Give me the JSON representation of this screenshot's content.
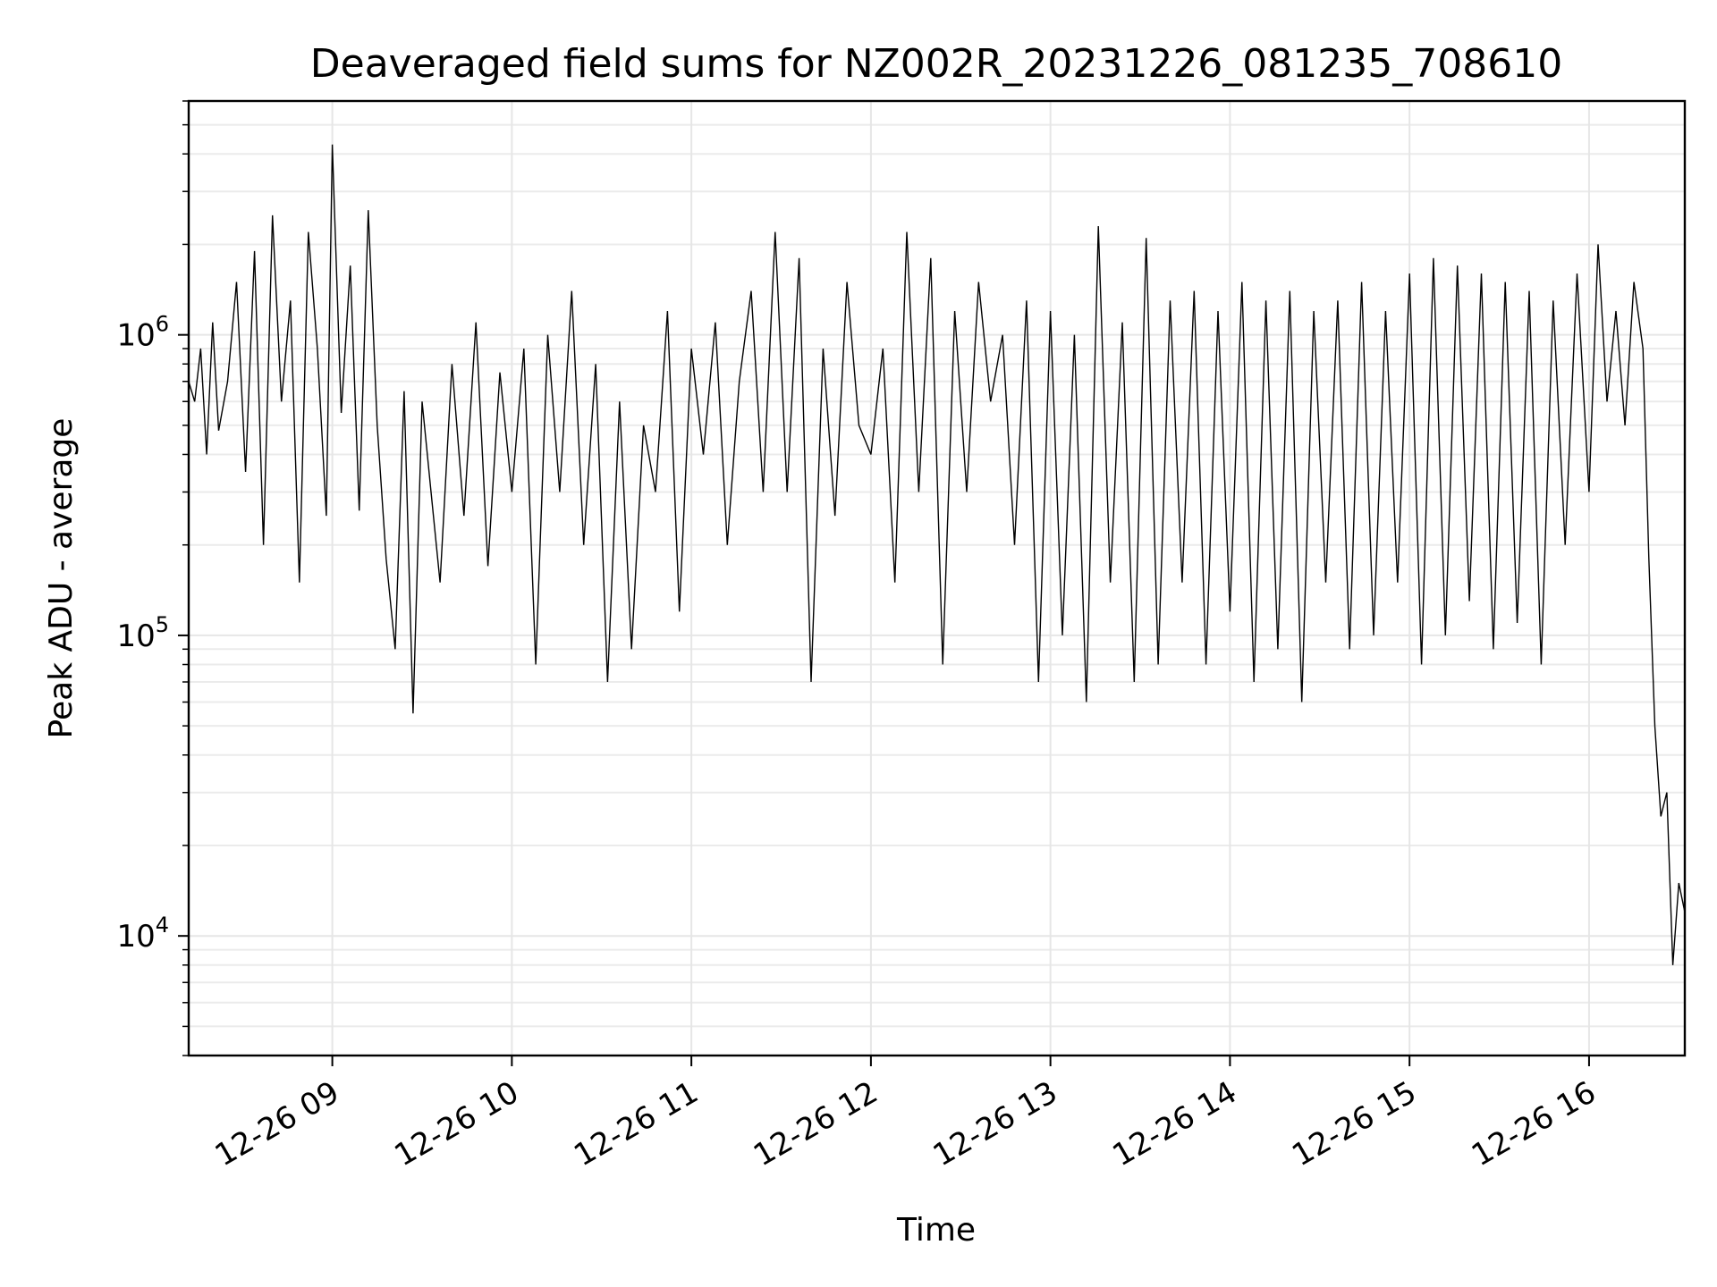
{
  "chart_data": {
    "type": "line",
    "title": "Deaveraged field sums for NZ002R_20231226_081235_708610",
    "xlabel": "Time",
    "ylabel": "Peak ADU - average",
    "yscale": "log",
    "grid": "on (major and minor)",
    "line_color": "#000000",
    "xlim": [
      "2023-12-26 08:12",
      "2023-12-26 16:32"
    ],
    "ylim": [
      4000,
      6000000
    ],
    "x_ticks": [
      {
        "value": "2023-12-26 09:00",
        "label": "12-26 09"
      },
      {
        "value": "2023-12-26 10:00",
        "label": "12-26 10"
      },
      {
        "value": "2023-12-26 11:00",
        "label": "12-26 11"
      },
      {
        "value": "2023-12-26 12:00",
        "label": "12-26 12"
      },
      {
        "value": "2023-12-26 13:00",
        "label": "12-26 13"
      },
      {
        "value": "2023-12-26 14:00",
        "label": "12-26 14"
      },
      {
        "value": "2023-12-26 15:00",
        "label": "12-26 15"
      },
      {
        "value": "2023-12-26 16:00",
        "label": "12-26 16"
      }
    ],
    "y_ticks": [
      {
        "value": 10000,
        "base": "10",
        "exp": "4"
      },
      {
        "value": 100000,
        "base": "10",
        "exp": "5"
      },
      {
        "value": 1000000,
        "base": "10",
        "exp": "6"
      }
    ],
    "series": [
      {
        "x": [
          "2023-12-26 08:12",
          "2023-12-26 08:14",
          "2023-12-26 08:16",
          "2023-12-26 08:18",
          "2023-12-26 08:20",
          "2023-12-26 08:22",
          "2023-12-26 08:25",
          "2023-12-26 08:28",
          "2023-12-26 08:31",
          "2023-12-26 08:34",
          "2023-12-26 08:37",
          "2023-12-26 08:40",
          "2023-12-26 08:43",
          "2023-12-26 08:46",
          "2023-12-26 08:49",
          "2023-12-26 08:52",
          "2023-12-26 08:55",
          "2023-12-26 08:58",
          "2023-12-26 09:00",
          "2023-12-26 09:03",
          "2023-12-26 09:06",
          "2023-12-26 09:09",
          "2023-12-26 09:12",
          "2023-12-26 09:15",
          "2023-12-26 09:18",
          "2023-12-26 09:21",
          "2023-12-26 09:24",
          "2023-12-26 09:27",
          "2023-12-26 09:30",
          "2023-12-26 09:33",
          "2023-12-26 09:36",
          "2023-12-26 09:40",
          "2023-12-26 09:44",
          "2023-12-26 09:48",
          "2023-12-26 09:52",
          "2023-12-26 09:56",
          "2023-12-26 10:00",
          "2023-12-26 10:04",
          "2023-12-26 10:08",
          "2023-12-26 10:12",
          "2023-12-26 10:16",
          "2023-12-26 10:20",
          "2023-12-26 10:24",
          "2023-12-26 10:28",
          "2023-12-26 10:32",
          "2023-12-26 10:36",
          "2023-12-26 10:40",
          "2023-12-26 10:44",
          "2023-12-26 10:48",
          "2023-12-26 10:52",
          "2023-12-26 10:56",
          "2023-12-26 11:00",
          "2023-12-26 11:04",
          "2023-12-26 11:08",
          "2023-12-26 11:12",
          "2023-12-26 11:16",
          "2023-12-26 11:20",
          "2023-12-26 11:24",
          "2023-12-26 11:28",
          "2023-12-26 11:32",
          "2023-12-26 11:36",
          "2023-12-26 11:40",
          "2023-12-26 11:44",
          "2023-12-26 11:48",
          "2023-12-26 11:52",
          "2023-12-26 11:56",
          "2023-12-26 12:00",
          "2023-12-26 12:04",
          "2023-12-26 12:08",
          "2023-12-26 12:12",
          "2023-12-26 12:16",
          "2023-12-26 12:20",
          "2023-12-26 12:24",
          "2023-12-26 12:28",
          "2023-12-26 12:32",
          "2023-12-26 12:36",
          "2023-12-26 12:40",
          "2023-12-26 12:44",
          "2023-12-26 12:48",
          "2023-12-26 12:52",
          "2023-12-26 12:56",
          "2023-12-26 13:00",
          "2023-12-26 13:04",
          "2023-12-26 13:08",
          "2023-12-26 13:12",
          "2023-12-26 13:16",
          "2023-12-26 13:20",
          "2023-12-26 13:24",
          "2023-12-26 13:28",
          "2023-12-26 13:32",
          "2023-12-26 13:36",
          "2023-12-26 13:40",
          "2023-12-26 13:44",
          "2023-12-26 13:48",
          "2023-12-26 13:52",
          "2023-12-26 13:56",
          "2023-12-26 14:00",
          "2023-12-26 14:04",
          "2023-12-26 14:08",
          "2023-12-26 14:12",
          "2023-12-26 14:16",
          "2023-12-26 14:20",
          "2023-12-26 14:24",
          "2023-12-26 14:28",
          "2023-12-26 14:32",
          "2023-12-26 14:36",
          "2023-12-26 14:40",
          "2023-12-26 14:44",
          "2023-12-26 14:48",
          "2023-12-26 14:52",
          "2023-12-26 14:56",
          "2023-12-26 15:00",
          "2023-12-26 15:04",
          "2023-12-26 15:08",
          "2023-12-26 15:12",
          "2023-12-26 15:16",
          "2023-12-26 15:20",
          "2023-12-26 15:24",
          "2023-12-26 15:28",
          "2023-12-26 15:32",
          "2023-12-26 15:36",
          "2023-12-26 15:40",
          "2023-12-26 15:44",
          "2023-12-26 15:48",
          "2023-12-26 15:52",
          "2023-12-26 15:56",
          "2023-12-26 16:00",
          "2023-12-26 16:03",
          "2023-12-26 16:06",
          "2023-12-26 16:09",
          "2023-12-26 16:12",
          "2023-12-26 16:15",
          "2023-12-26 16:18",
          "2023-12-26 16:20",
          "2023-12-26 16:22",
          "2023-12-26 16:24",
          "2023-12-26 16:26",
          "2023-12-26 16:28",
          "2023-12-26 16:30",
          "2023-12-26 16:32"
        ],
        "y": [
          700000,
          600000,
          900000,
          400000,
          1100000,
          480000,
          700000,
          1500000,
          350000,
          1900000,
          200000,
          2500000,
          600000,
          1300000,
          150000,
          2200000,
          900000,
          250000,
          4300000,
          550000,
          1700000,
          260000,
          2600000,
          500000,
          180000,
          90000,
          650000,
          55000,
          600000,
          300000,
          150000,
          800000,
          250000,
          1100000,
          170000,
          750000,
          300000,
          900000,
          80000,
          1000000,
          300000,
          1400000,
          200000,
          800000,
          70000,
          600000,
          90000,
          500000,
          300000,
          1200000,
          120000,
          900000,
          400000,
          1100000,
          200000,
          700000,
          1400000,
          300000,
          2200000,
          300000,
          1800000,
          70000,
          900000,
          250000,
          1500000,
          500000,
          400000,
          900000,
          150000,
          2200000,
          300000,
          1800000,
          80000,
          1200000,
          300000,
          1500000,
          600000,
          1000000,
          200000,
          1300000,
          70000,
          1200000,
          100000,
          1000000,
          60000,
          2300000,
          150000,
          1100000,
          70000,
          2100000,
          80000,
          1300000,
          150000,
          1400000,
          80000,
          1200000,
          120000,
          1500000,
          70000,
          1300000,
          90000,
          1400000,
          60000,
          1200000,
          150000,
          1300000,
          90000,
          1500000,
          100000,
          1200000,
          150000,
          1600000,
          80000,
          1800000,
          100000,
          1700000,
          130000,
          1600000,
          90000,
          1500000,
          110000,
          1400000,
          80000,
          1300000,
          200000,
          1600000,
          300000,
          2000000,
          600000,
          1200000,
          500000,
          1500000,
          900000,
          180000,
          50000,
          25000,
          30000,
          8000,
          15000,
          12000
        ]
      }
    ]
  }
}
